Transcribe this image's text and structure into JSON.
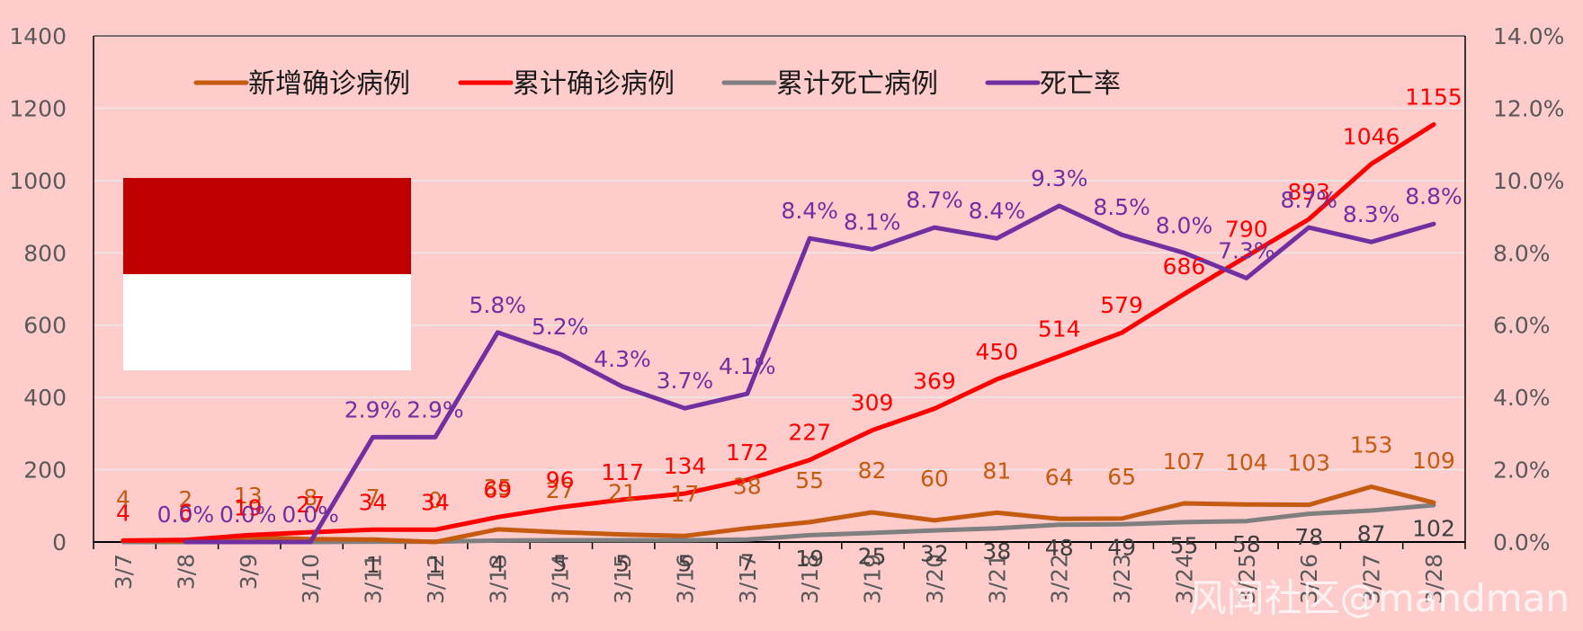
{
  "chart_data": {
    "type": "line",
    "categories": [
      "3/7",
      "3/8",
      "3/9",
      "3/10",
      "3/11",
      "3/12",
      "3/13",
      "3/14",
      "3/15",
      "3/16",
      "3/17",
      "3/18",
      "3/19",
      "3/20",
      "3/21",
      "3/22",
      "3/23",
      "3/24",
      "3/25",
      "3/26",
      "3/27",
      "3/28"
    ],
    "y_left": {
      "min": 0,
      "max": 1400,
      "step": 200,
      "ticks": [
        "0",
        "200",
        "400",
        "600",
        "800",
        "1000",
        "1200",
        "1400"
      ]
    },
    "y_right": {
      "min": 0,
      "max": 0.14,
      "step": 0.02,
      "ticks": [
        "0.0%",
        "2.0%",
        "4.0%",
        "6.0%",
        "8.0%",
        "10.0%",
        "12.0%",
        "14.0%"
      ]
    },
    "series": [
      {
        "name": "新增确诊病例",
        "axis": "left",
        "color": "#C55A11",
        "values": [
          4,
          2,
          13,
          8,
          7,
          0,
          35,
          27,
          21,
          17,
          38,
          55,
          82,
          60,
          81,
          64,
          65,
          107,
          104,
          103,
          153,
          109
        ],
        "labels": [
          "4",
          "2",
          "13",
          "8",
          "7",
          "0",
          "35",
          "27",
          "21",
          "17",
          "38",
          "55",
          "82",
          "60",
          "81",
          "64",
          "65",
          "107",
          "104",
          "103",
          "153",
          "109"
        ]
      },
      {
        "name": "累计确诊病例",
        "axis": "left",
        "color": "#FF0000",
        "values": [
          4,
          6,
          19,
          27,
          34,
          34,
          69,
          96,
          117,
          134,
          172,
          227,
          309,
          369,
          450,
          514,
          579,
          686,
          790,
          893,
          1046,
          1155
        ],
        "labels": [
          "4",
          "6",
          "19",
          "27",
          "34",
          "34",
          "69",
          "96",
          "117",
          "134",
          "172",
          "227",
          "309",
          "369",
          "450",
          "514",
          "579",
          "686",
          "790",
          "893",
          "1046",
          "1155"
        ]
      },
      {
        "name": "累计死亡病例",
        "axis": "left",
        "color": "#7F7F7F",
        "values": [
          0,
          0,
          0,
          0,
          1,
          1,
          4,
          5,
          5,
          5,
          7,
          19,
          25,
          32,
          38,
          48,
          49,
          55,
          58,
          78,
          87,
          102
        ],
        "labels": [
          "",
          "",
          "",
          "",
          "1",
          "1",
          "4",
          "5",
          "5",
          "5",
          "7",
          "19",
          "25",
          "32",
          "38",
          "48",
          "49",
          "55",
          "58",
          "78",
          "87",
          "102"
        ]
      },
      {
        "name": "死亡率",
        "axis": "right",
        "color": "#7030A0",
        "values": [
          0.0,
          0.0,
          0.0,
          0.0,
          0.029,
          0.029,
          0.058,
          0.052,
          0.043,
          0.037,
          0.041,
          0.084,
          0.081,
          0.087,
          0.084,
          0.093,
          0.085,
          0.08,
          0.073,
          0.087,
          0.083,
          0.088
        ],
        "labels": [
          "",
          "0.0%",
          "0.0%",
          "0.0%",
          "2.9%",
          "2.9%",
          "5.8%",
          "5.2%",
          "4.3%",
          "3.7%",
          "4.1%",
          "8.4%",
          "8.1%",
          "8.7%",
          "8.4%",
          "9.3%",
          "8.5%",
          "8.0%",
          "7.3%",
          "8.7%",
          "8.3%",
          "8.8%"
        ]
      }
    ],
    "legend_position": "top",
    "gridlines": true
  },
  "flag": {
    "top_color": "#C00000",
    "bottom_color": "#FFFFFF"
  },
  "watermark": "风闻社区@mandman",
  "colors": {
    "background": "#FFCCCC",
    "grid": "#E8E8E8",
    "axis": "#000000"
  }
}
